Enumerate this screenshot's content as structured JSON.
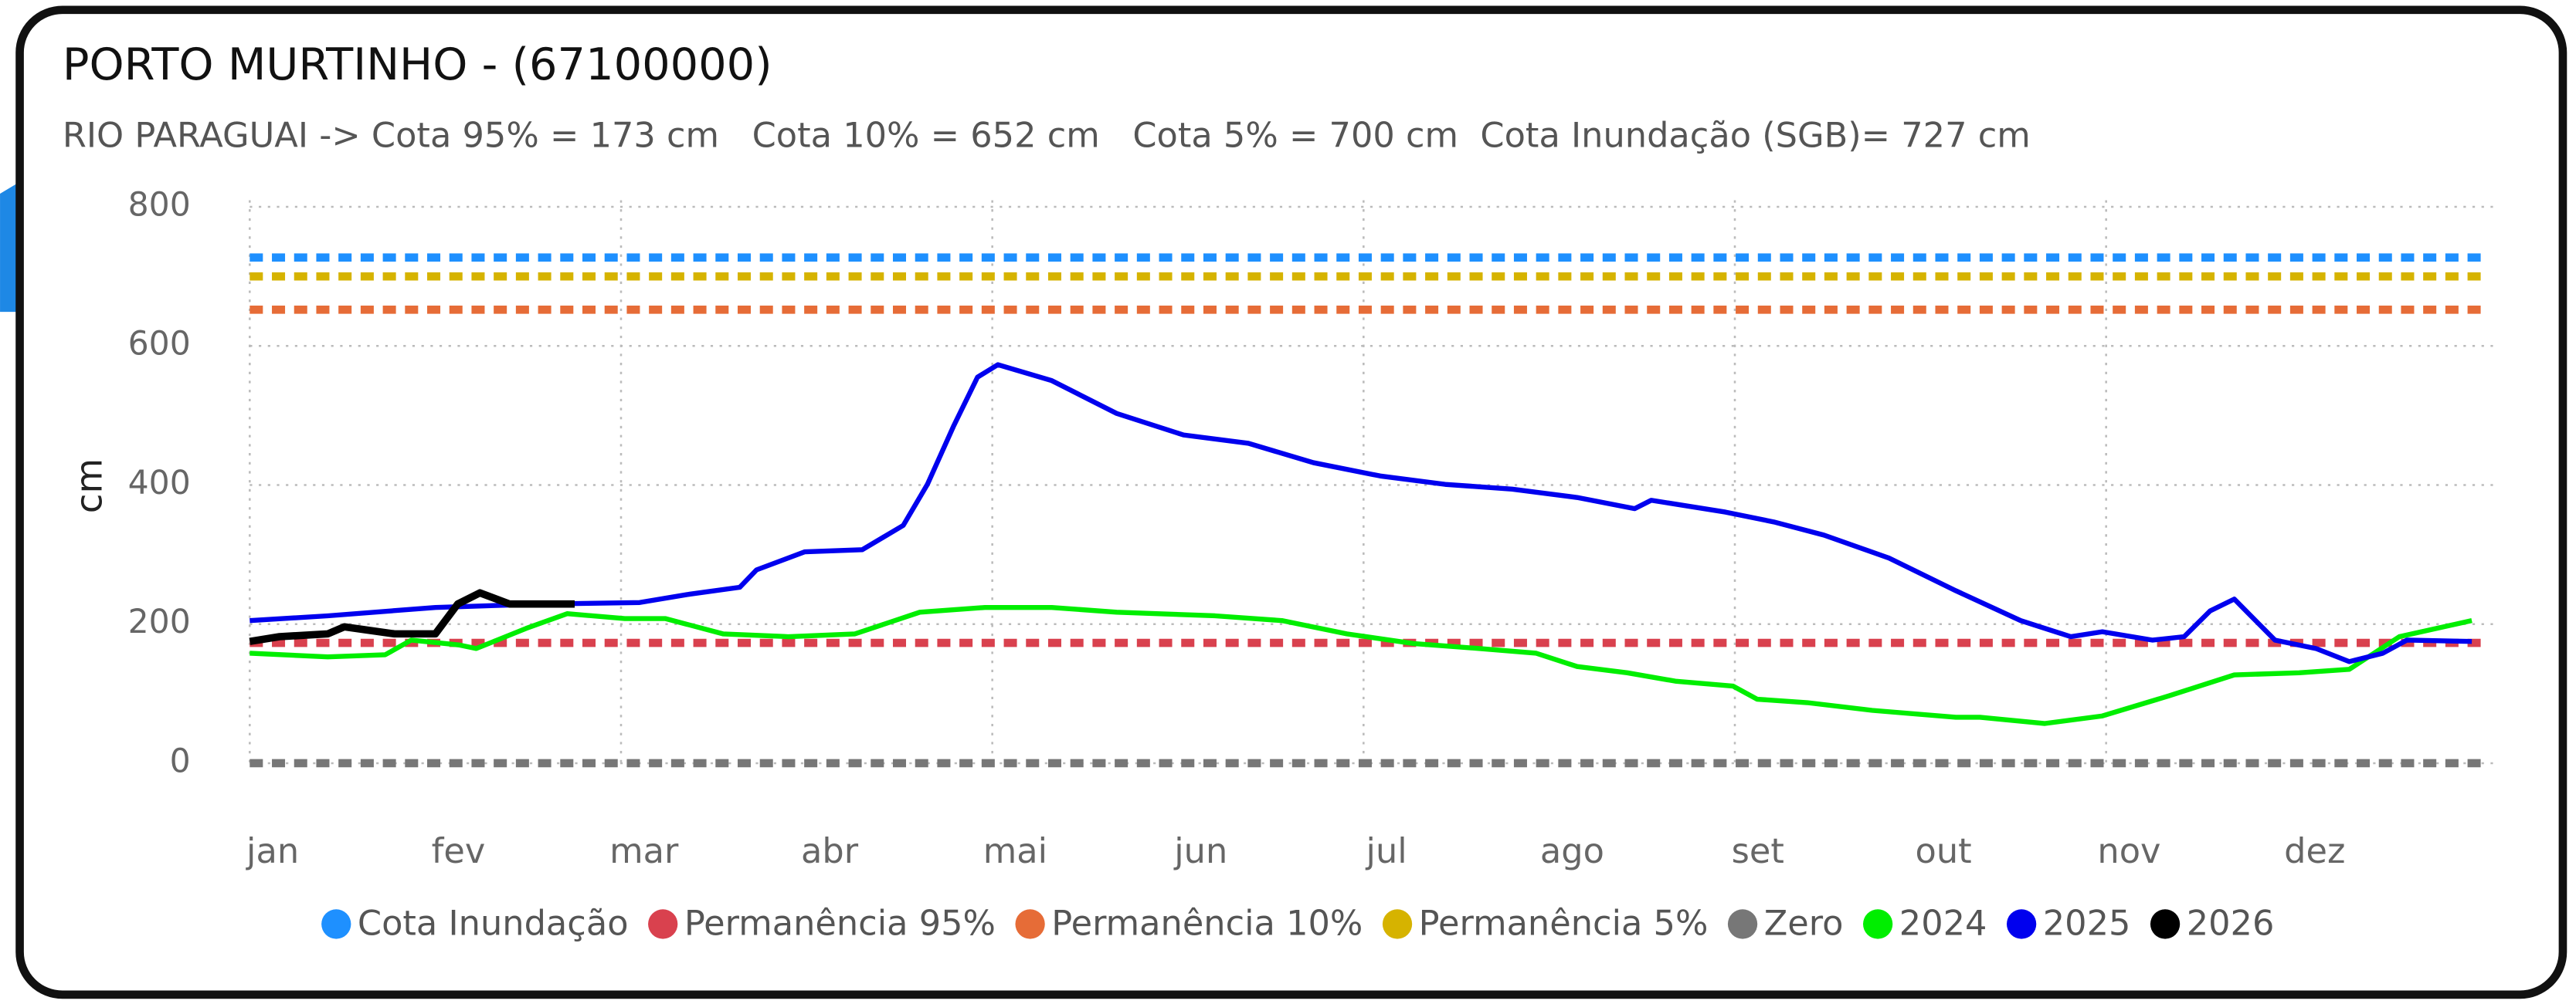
{
  "chart_data": {
    "type": "line",
    "title": "PORTO MURTINHO - (67100000)",
    "subtitle": "RIO PARAGUAI -> Cota 95% = 173 cm   Cota 10% = 652 cm   Cota 5% = 700 cm  Cota Inundação (SGB)= 727 cm",
    "y_label": "cm",
    "ylim": [
      0,
      800
    ],
    "yticks": [
      0,
      200,
      400,
      600,
      800
    ],
    "xlim": [
      0,
      12.1
    ],
    "xticks": [
      {
        "value": 0,
        "label": "jan"
      },
      {
        "value": 1,
        "label": "fev"
      },
      {
        "value": 2,
        "label": "mar"
      },
      {
        "value": 3,
        "label": "abr"
      },
      {
        "value": 4,
        "label": "mai"
      },
      {
        "value": 5,
        "label": "jun"
      },
      {
        "value": 6,
        "label": "jul"
      },
      {
        "value": 7,
        "label": "ago"
      },
      {
        "value": 8,
        "label": "set"
      },
      {
        "value": 9,
        "label": "out"
      },
      {
        "value": 10,
        "label": "nov"
      },
      {
        "value": 11,
        "label": "dez"
      }
    ],
    "grid": true,
    "legend": "bottom",
    "series": [
      {
        "name": "Cota Inundação",
        "color": "#1e90ff",
        "line_style": "dashed",
        "x": [
          0,
          12.05
        ],
        "values": [
          727,
          727
        ]
      },
      {
        "name": "Permanência 95%",
        "color": "#d9414e",
        "line_style": "dashed",
        "x": [
          0,
          12.05
        ],
        "values": [
          173,
          173
        ]
      },
      {
        "name": "Permanência 10%",
        "color": "#e66c37",
        "line_style": "dashed",
        "x": [
          0,
          12.05
        ],
        "values": [
          652,
          652
        ]
      },
      {
        "name": "Permanência 5%",
        "color": "#d6b300",
        "line_style": "dashed",
        "x": [
          0,
          12.05
        ],
        "values": [
          700,
          700
        ]
      },
      {
        "name": "Zero",
        "color": "#777777",
        "line_style": "dashed",
        "x": [
          0,
          12.05
        ],
        "values": [
          0,
          0
        ]
      },
      {
        "name": "2024",
        "color": "#00ee00",
        "line_style": "solid",
        "x": [
          0,
          0.42,
          0.73,
          0.87,
          1.13,
          1.22,
          1.49,
          1.71,
          2.02,
          2.24,
          2.55,
          2.9,
          3.26,
          3.61,
          3.96,
          4.32,
          4.67,
          5.2,
          5.56,
          5.91,
          6.27,
          6.62,
          6.93,
          7.15,
          7.42,
          7.68,
          7.99,
          8.12,
          8.39,
          8.74,
          9.19,
          9.32,
          9.67,
          9.98,
          10.34,
          10.69,
          11.04,
          11.31,
          11.58,
          11.97
        ],
        "values": [
          158,
          153,
          156,
          177,
          170,
          165,
          194,
          215,
          208,
          208,
          186,
          182,
          186,
          217,
          224,
          224,
          217,
          212,
          205,
          186,
          172,
          165,
          158,
          139,
          130,
          118,
          111,
          92,
          87,
          76,
          66,
          66,
          57,
          68,
          97,
          127,
          130,
          135,
          182,
          205
        ]
      },
      {
        "name": "2025",
        "color": "#0000ee",
        "line_style": "solid",
        "x": [
          0,
          0.42,
          1.0,
          1.58,
          2.1,
          2.37,
          2.64,
          2.73,
          2.99,
          3.3,
          3.52,
          3.65,
          3.79,
          3.92,
          4.03,
          4.32,
          4.67,
          5.03,
          5.38,
          5.73,
          6.09,
          6.44,
          6.8,
          7.15,
          7.46,
          7.55,
          7.95,
          8.21,
          8.48,
          8.83,
          9.19,
          9.54,
          9.81,
          9.98,
          10.25,
          10.42,
          10.56,
          10.69,
          10.78,
          10.91,
          11.13,
          11.31,
          11.49,
          11.62,
          11.97
        ],
        "values": [
          205,
          212,
          224,
          229,
          231,
          243,
          253,
          278,
          304,
          307,
          342,
          401,
          484,
          555,
          573,
          550,
          503,
          472,
          460,
          432,
          413,
          401,
          394,
          382,
          366,
          378,
          361,
          347,
          328,
          295,
          248,
          205,
          182,
          189,
          177,
          182,
          219,
          236,
          212,
          177,
          165,
          146,
          158,
          177,
          175
        ]
      },
      {
        "name": "2026",
        "color": "#000000",
        "line_style": "solid",
        "x": [
          0,
          0.16,
          0.42,
          0.51,
          0.78,
          1.0,
          1.12,
          1.24,
          1.4,
          1.75
        ],
        "values": [
          175,
          182,
          186,
          196,
          186,
          186,
          229,
          245,
          229,
          229
        ]
      }
    ]
  }
}
